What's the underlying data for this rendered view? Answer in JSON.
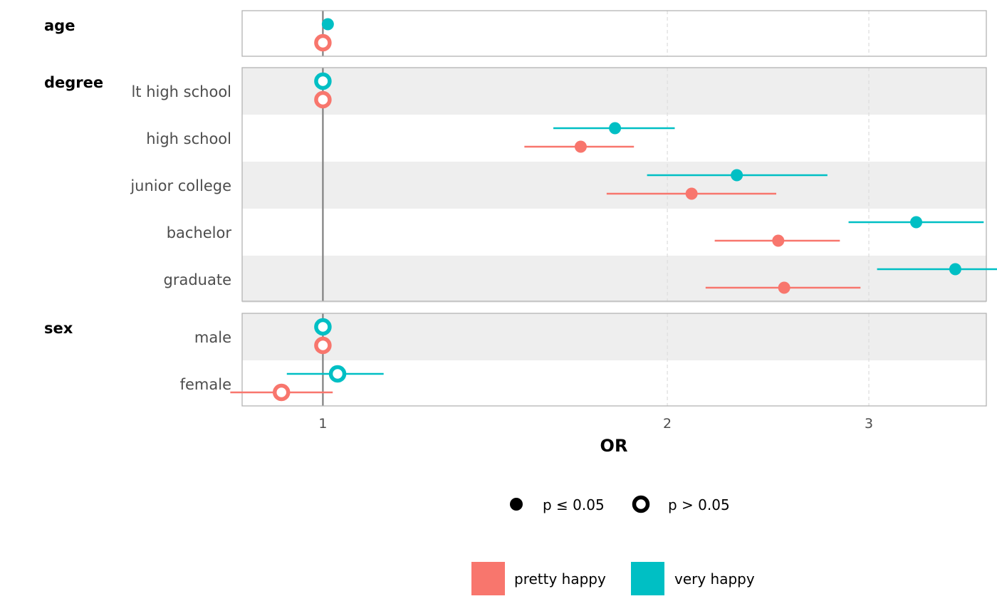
{
  "chart_data": {
    "type": "scatter",
    "xlabel": "OR",
    "x_scale": "log",
    "xlim": [
      0.85,
      3.8
    ],
    "x_ticks": [
      "1",
      "2",
      "3"
    ],
    "reference_line": 1,
    "grid": "vertical dashed at 2 and 3",
    "series": [
      {
        "name": "pretty happy",
        "color": "#F8766D"
      },
      {
        "name": "very happy",
        "color": "#00BFC4"
      }
    ],
    "shape_legend": [
      {
        "label": "p ≤ 0.05",
        "shape": "filled-circle"
      },
      {
        "label": "p > 0.05",
        "shape": "open-circle"
      }
    ],
    "legend_position": "bottom",
    "variables": [
      {
        "name": "age",
        "levels": [
          {
            "label": "",
            "points": [
              {
                "series": "very happy",
                "or": 1.01,
                "lo": 1.01,
                "hi": 1.01,
                "significant": true
              },
              {
                "series": "pretty happy",
                "or": 1.0,
                "lo": 1.0,
                "hi": 1.0,
                "significant": false
              }
            ]
          }
        ]
      },
      {
        "name": "degree",
        "levels": [
          {
            "label": "lt high school",
            "points": [
              {
                "series": "very happy",
                "or": 1.0,
                "lo": 1.0,
                "hi": 1.0,
                "significant": false
              },
              {
                "series": "pretty happy",
                "or": 1.0,
                "lo": 1.0,
                "hi": 1.0,
                "significant": false
              }
            ]
          },
          {
            "label": "high school",
            "points": [
              {
                "series": "very happy",
                "or": 1.8,
                "lo": 1.59,
                "hi": 2.03,
                "significant": true
              },
              {
                "series": "pretty happy",
                "or": 1.68,
                "lo": 1.5,
                "hi": 1.87,
                "significant": true
              }
            ]
          },
          {
            "label": "junior college",
            "points": [
              {
                "series": "very happy",
                "or": 2.3,
                "lo": 1.92,
                "hi": 2.76,
                "significant": true
              },
              {
                "series": "pretty happy",
                "or": 2.1,
                "lo": 1.77,
                "hi": 2.49,
                "significant": true
              }
            ]
          },
          {
            "label": "bachelor",
            "points": [
              {
                "series": "very happy",
                "or": 3.3,
                "lo": 2.88,
                "hi": 3.78,
                "significant": true
              },
              {
                "series": "pretty happy",
                "or": 2.5,
                "lo": 2.2,
                "hi": 2.83,
                "significant": true
              }
            ]
          },
          {
            "label": "graduate",
            "points": [
              {
                "series": "very happy",
                "or": 3.57,
                "lo": 3.05,
                "hi": 4.27,
                "significant": true
              },
              {
                "series": "pretty happy",
                "or": 2.53,
                "lo": 2.16,
                "hi": 2.95,
                "significant": true
              }
            ]
          }
        ]
      },
      {
        "name": "sex",
        "levels": [
          {
            "label": "male",
            "points": [
              {
                "series": "very happy",
                "or": 1.0,
                "lo": 1.0,
                "hi": 1.0,
                "significant": false
              },
              {
                "series": "pretty happy",
                "or": 1.0,
                "lo": 1.0,
                "hi": 1.0,
                "significant": false
              }
            ]
          },
          {
            "label": "female",
            "points": [
              {
                "series": "very happy",
                "or": 1.03,
                "lo": 0.93,
                "hi": 1.13,
                "significant": false
              },
              {
                "series": "pretty happy",
                "or": 0.92,
                "lo": 0.83,
                "hi": 1.02,
                "significant": false
              }
            ]
          }
        ]
      }
    ]
  }
}
